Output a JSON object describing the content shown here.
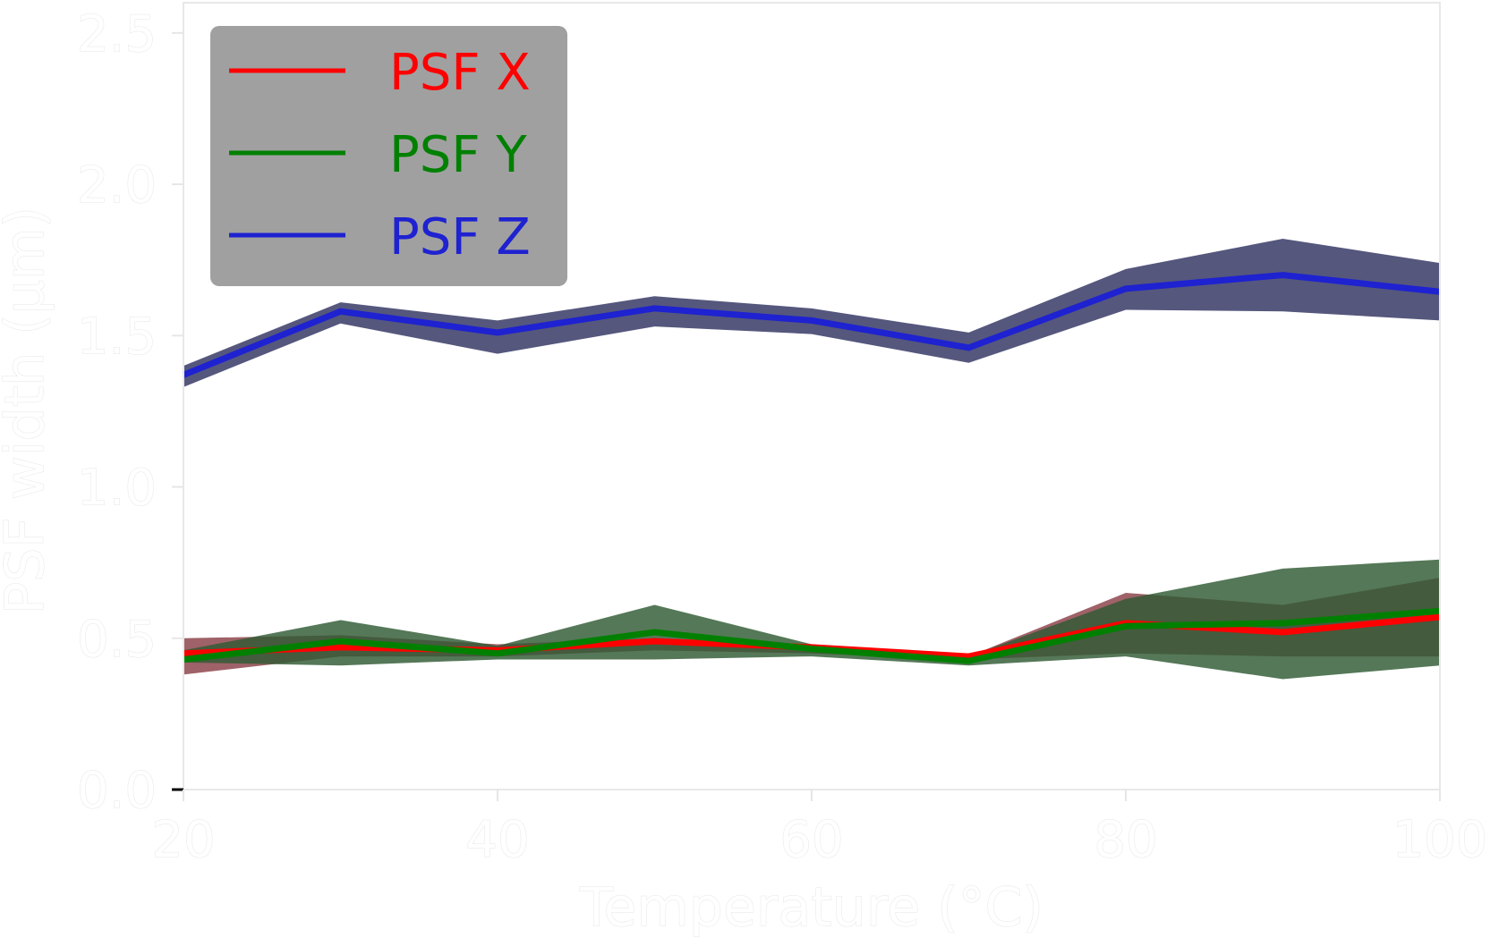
{
  "chart_data": {
    "type": "line",
    "title": "",
    "xlabel": "Temperature (°C)",
    "ylabel": "PSF width (μm)",
    "xlim": [
      20,
      100
    ],
    "ylim": [
      0,
      2.6
    ],
    "xticks": [
      20,
      40,
      60,
      80,
      100
    ],
    "xtick_labels": [
      "20",
      "40",
      "60",
      "80",
      "100"
    ],
    "yticks": [
      0.0,
      0.5,
      1.0,
      1.5,
      2.0,
      2.5
    ],
    "ytick_labels": [
      "0.0",
      "0.5",
      "1.0",
      "1.5",
      "2.0",
      "2.5"
    ],
    "grid": false,
    "legend_position": "top-left",
    "x": [
      20,
      30,
      40,
      50,
      60,
      70,
      80,
      90,
      100
    ],
    "series": [
      {
        "name": "PSF X",
        "color": "#ff0000",
        "band_color": "#8a3f47",
        "values": [
          0.45,
          0.47,
          0.46,
          0.49,
          0.47,
          0.44,
          0.55,
          0.52,
          0.57
        ],
        "upper": [
          0.5,
          0.51,
          0.48,
          0.5,
          0.48,
          0.44,
          0.65,
          0.61,
          0.7
        ],
        "lower": [
          0.38,
          0.44,
          0.44,
          0.46,
          0.45,
          0.43,
          0.45,
          0.44,
          0.44
        ]
      },
      {
        "name": "PSF Y",
        "color": "#008000",
        "band_color": "#2f5a33",
        "values": [
          0.43,
          0.49,
          0.45,
          0.52,
          0.465,
          0.425,
          0.54,
          0.55,
          0.59
        ],
        "upper": [
          0.46,
          0.56,
          0.475,
          0.61,
          0.48,
          0.44,
          0.63,
          0.73,
          0.76
        ],
        "lower": [
          0.42,
          0.41,
          0.43,
          0.43,
          0.44,
          0.41,
          0.44,
          0.365,
          0.41
        ]
      },
      {
        "name": "PSF Z",
        "color": "#1e22d0",
        "band_color": "#2f3260",
        "values": [
          1.37,
          1.58,
          1.51,
          1.59,
          1.55,
          1.46,
          1.655,
          1.7,
          1.645
        ],
        "upper": [
          1.4,
          1.61,
          1.55,
          1.63,
          1.59,
          1.51,
          1.72,
          1.82,
          1.74
        ],
        "lower": [
          1.33,
          1.54,
          1.44,
          1.53,
          1.505,
          1.41,
          1.585,
          1.58,
          1.55
        ]
      }
    ]
  },
  "colors": {
    "legend_background": "#a0a0a0",
    "frame": "#e8e8e8"
  }
}
